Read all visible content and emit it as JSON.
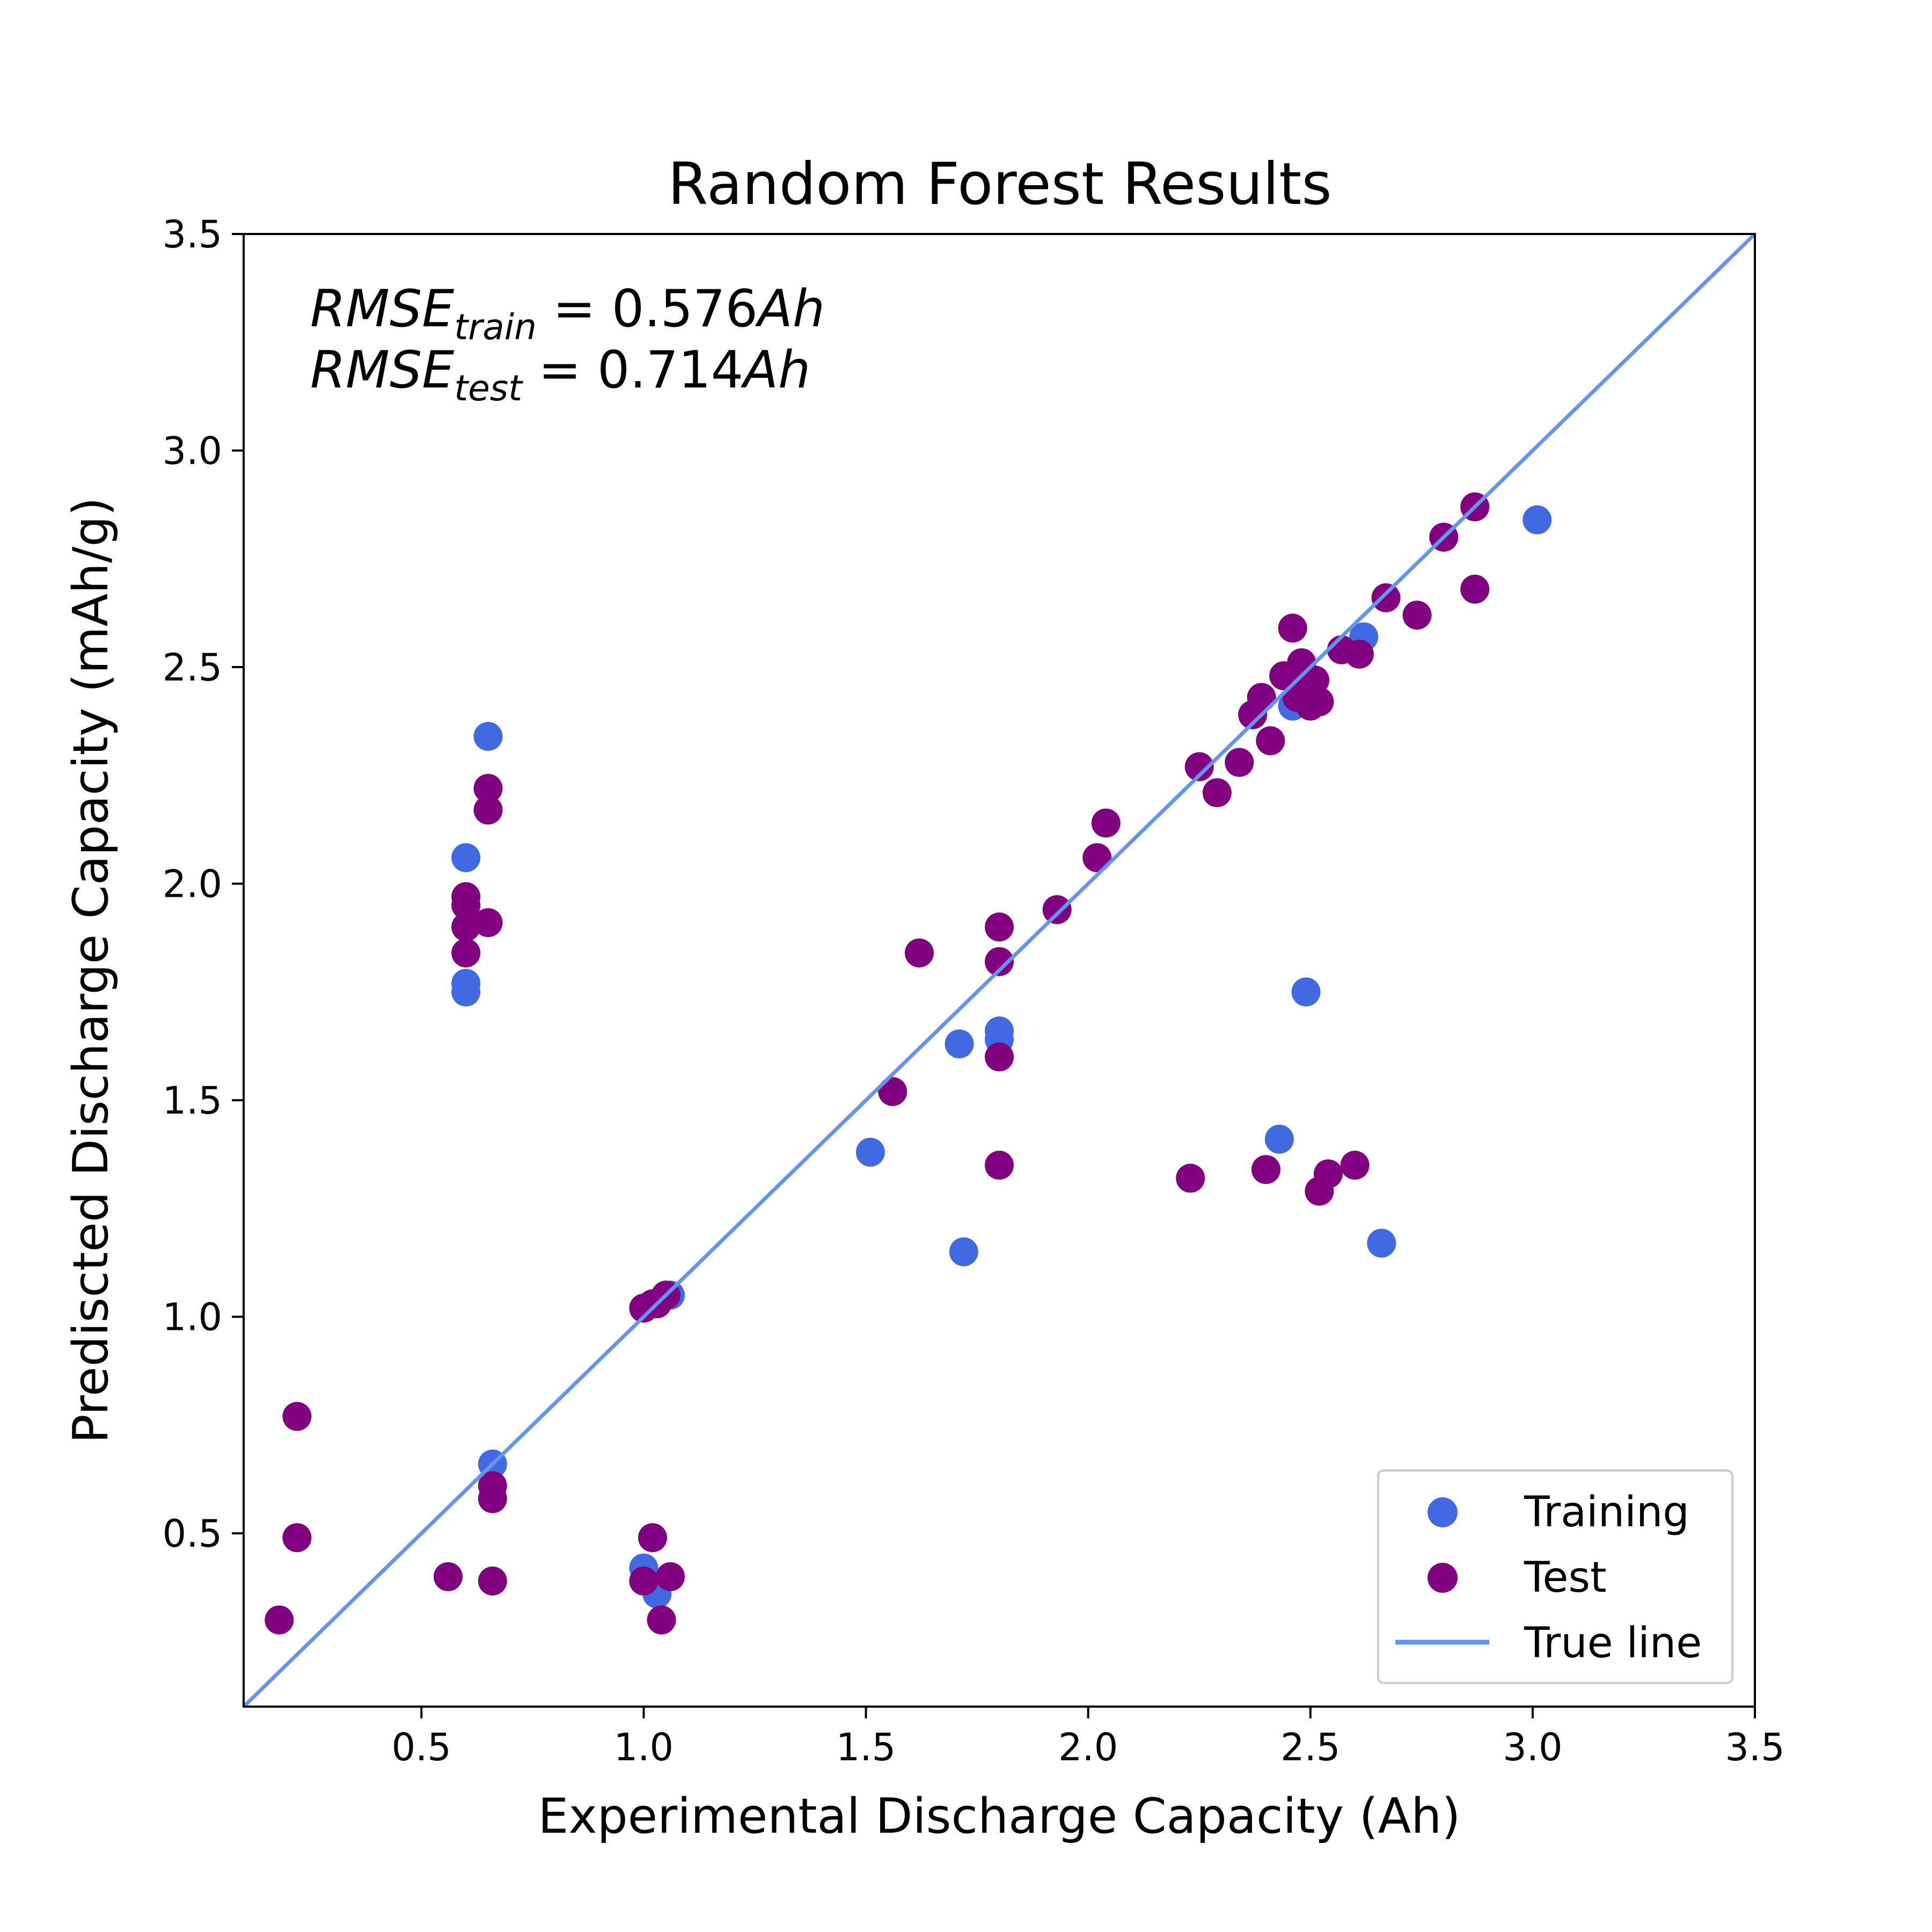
{
  "chart_data": {
    "type": "scatter",
    "title": "Random Forest Results",
    "xlabel": "Experimental Discharge Capacity (Ah)",
    "ylabel": "Prediscted Discharge Capacity (mAh/g)",
    "xlim": [
      0.1,
      3.5
    ],
    "ylim": [
      0.1,
      3.5
    ],
    "xticks": [
      "0.5",
      "1.0",
      "1.5",
      "2.0",
      "2.5",
      "3.0",
      "3.5"
    ],
    "yticks": [
      "0.5",
      "1.0",
      "1.5",
      "2.0",
      "2.5",
      "3.0",
      "3.5"
    ],
    "grid": false,
    "legend_position": "bottom-right",
    "annotations": {
      "train": {
        "base": "RMSE",
        "sub": "train",
        "eq": " = 0.576",
        "unit": "Ah"
      },
      "test": {
        "base": "RMSE",
        "sub": "test",
        "eq": " = 0.714",
        "unit": "Ah"
      }
    },
    "series": [
      {
        "name": "Training",
        "color": "#4169E1",
        "x": [
          0.65,
          0.6,
          0.6,
          0.6,
          0.66,
          1.0,
          1.03,
          1.06,
          1.51,
          1.71,
          1.72,
          1.8,
          1.8,
          2.43,
          2.46,
          2.49,
          2.62,
          2.66,
          3.01
        ],
        "y": [
          2.34,
          2.06,
          1.77,
          1.75,
          0.66,
          0.42,
          0.36,
          1.05,
          1.38,
          1.63,
          1.15,
          1.66,
          1.64,
          1.41,
          2.41,
          1.75,
          2.57,
          1.17,
          2.84
        ]
      },
      {
        "name": "Test",
        "color": "#800080",
        "x": [
          0.18,
          0.22,
          0.22,
          0.56,
          0.6,
          0.6,
          0.6,
          0.6,
          0.65,
          0.65,
          0.65,
          0.66,
          0.66,
          0.66,
          1.0,
          1.0,
          1.02,
          1.02,
          1.03,
          1.04,
          1.05,
          1.06,
          1.56,
          1.62,
          1.8,
          1.8,
          1.8,
          1.8,
          1.93,
          2.02,
          2.04,
          2.23,
          2.25,
          2.29,
          2.34,
          2.37,
          2.39,
          2.4,
          2.41,
          2.44,
          2.46,
          2.47,
          2.48,
          2.49,
          2.5,
          2.51,
          2.52,
          2.52,
          2.54,
          2.57,
          2.6,
          2.61,
          2.67,
          2.74,
          2.8,
          2.87,
          2.87
        ],
        "y": [
          0.3,
          0.77,
          0.49,
          0.4,
          1.97,
          1.95,
          1.9,
          1.84,
          2.22,
          2.17,
          1.91,
          0.61,
          0.58,
          0.39,
          1.02,
          0.39,
          1.03,
          0.49,
          1.03,
          0.3,
          1.05,
          0.4,
          1.52,
          1.84,
          1.9,
          1.82,
          1.6,
          1.35,
          1.94,
          2.06,
          2.14,
          1.32,
          2.27,
          2.21,
          2.28,
          2.39,
          2.43,
          1.34,
          2.33,
          2.48,
          2.59,
          2.43,
          2.51,
          2.48,
          2.41,
          2.47,
          1.29,
          2.42,
          1.33,
          2.54,
          1.35,
          2.53,
          2.66,
          2.62,
          2.8,
          2.87,
          2.68
        ]
      },
      {
        "name": "True line",
        "color": "#6495ED",
        "x": [
          0.1,
          3.5
        ],
        "y": [
          0.1,
          3.5
        ]
      }
    ]
  }
}
